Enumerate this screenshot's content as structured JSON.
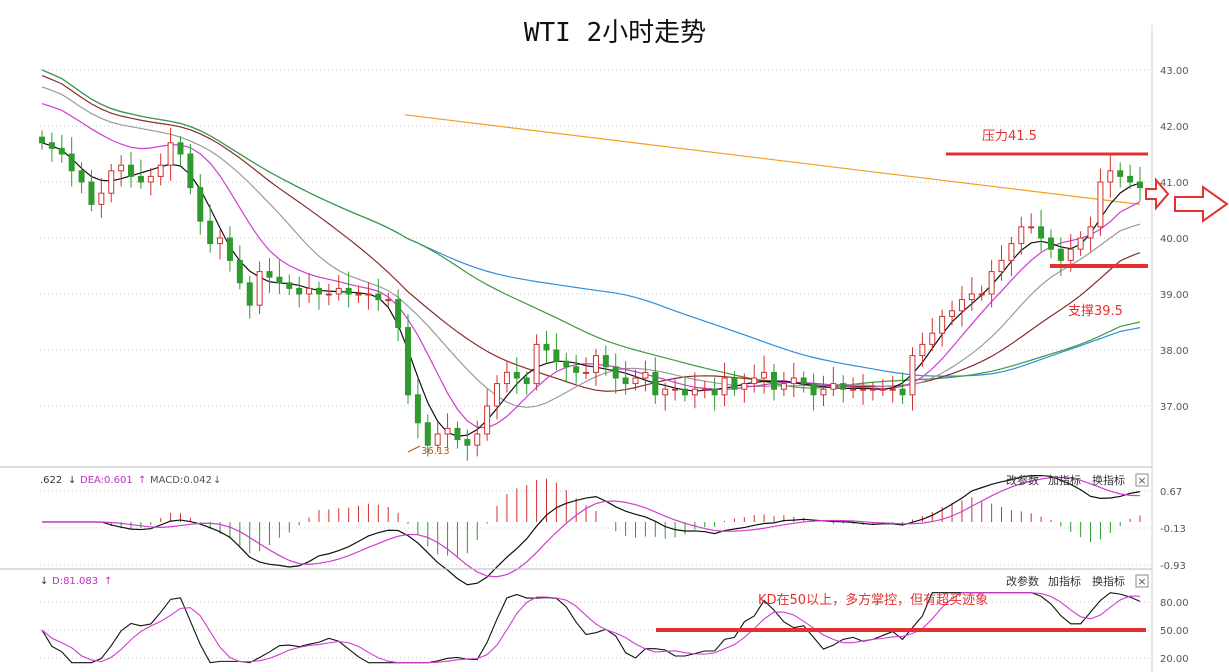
{
  "chart_data": [
    {
      "type": "candlestick",
      "title": "WTI 2小时走势",
      "ylim": [
        36.0,
        43.5
      ],
      "y_ticks": [
        "43.00",
        "42.00",
        "41.00",
        "40.00",
        "39.00",
        "38.00",
        "37.00"
      ],
      "low_marker_label": "36.13",
      "closes": [
        41.7,
        41.6,
        41.5,
        41.2,
        41.0,
        40.6,
        40.8,
        41.2,
        41.3,
        41.1,
        41.0,
        41.1,
        41.3,
        41.7,
        41.5,
        40.9,
        40.3,
        39.9,
        40.0,
        39.6,
        39.2,
        38.8,
        39.4,
        39.3,
        39.2,
        39.1,
        39.0,
        39.1,
        39.0,
        39.0,
        39.1,
        39.0,
        39.0,
        39.0,
        38.9,
        38.9,
        38.4,
        37.2,
        36.7,
        36.3,
        36.5,
        36.6,
        36.4,
        36.3,
        36.5,
        37.0,
        37.4,
        37.6,
        37.5,
        37.4,
        38.1,
        38.0,
        37.8,
        37.7,
        37.6,
        37.6,
        37.9,
        37.7,
        37.5,
        37.4,
        37.5,
        37.6,
        37.2,
        37.3,
        37.3,
        37.2,
        37.3,
        37.3,
        37.2,
        37.5,
        37.3,
        37.4,
        37.5,
        37.6,
        37.3,
        37.4,
        37.5,
        37.4,
        37.2,
        37.3,
        37.4,
        37.3,
        37.3,
        37.3,
        37.3,
        37.3,
        37.3,
        37.2,
        37.9,
        38.1,
        38.3,
        38.6,
        38.7,
        38.9,
        39.0,
        39.0,
        39.4,
        39.6,
        39.9,
        40.2,
        40.2,
        40.0,
        39.8,
        39.6,
        39.8,
        40.0,
        40.2,
        41.0,
        41.2,
        41.1,
        41.0,
        40.9
      ],
      "lines": [
        {
          "name": "orange",
          "color": "#f0a020",
          "start": 42.2,
          "end": 40.6
        },
        {
          "name": "blue",
          "color": "#2f8ed8",
          "start": 43.0,
          "end": 38.4
        },
        {
          "name": "green",
          "color": "#3f9a3f",
          "start": 43.0,
          "end": 38.5
        },
        {
          "name": "darkred",
          "color": "#8b2c2c",
          "start": 42.9,
          "end": 39.7
        },
        {
          "name": "gray",
          "color": "#9a9a9a",
          "start": 42.7,
          "end": 40.2
        },
        {
          "name": "magenta",
          "color": "#d03cd0",
          "start": 42.4,
          "end": 40.7
        },
        {
          "name": "black",
          "color": "#111111",
          "start": 41.7,
          "end": 40.9
        }
      ],
      "annotations": {
        "resistance_label": "压力41.5",
        "resistance_value": 41.5,
        "support_label": "支撑39.5",
        "support_value": 39.5
      }
    },
    {
      "type": "line",
      "indicator": "MACD",
      "header": {
        "dif": ".622",
        "dea": "DEA:0.601",
        "macd": "MACD:0.042"
      },
      "y_ticks": [
        "0.67",
        "-0.13",
        "-0.93"
      ],
      "ylim": [
        -1.0,
        0.8
      ]
    },
    {
      "type": "line",
      "indicator": "KD",
      "header": {
        "d": "D:81.083"
      },
      "y_ticks": [
        "80.00",
        "50.00",
        "20.00"
      ],
      "ylim": [
        10,
        95
      ],
      "line_value": 50,
      "annotation": "KD在50以上，多方掌控，但有超买迹象"
    }
  ],
  "toolbar": {
    "change_params": "改参数",
    "add_indicator": "加指标",
    "swap_indicator": "换指标",
    "close": "×"
  },
  "colors": {
    "up": "#d23030",
    "down": "#2f9a2f",
    "annotation_red": "#e43030",
    "grid": "#c8c8c8"
  }
}
